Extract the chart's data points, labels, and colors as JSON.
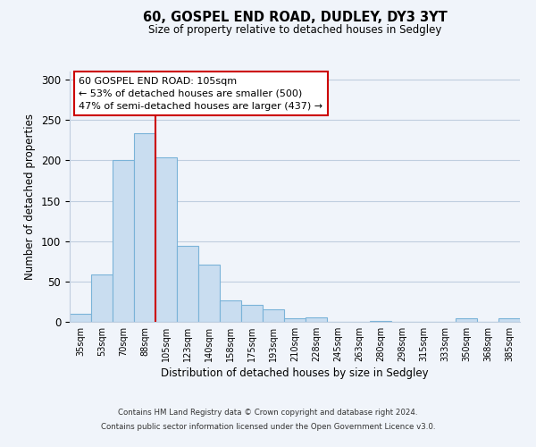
{
  "title": "60, GOSPEL END ROAD, DUDLEY, DY3 3YT",
  "subtitle": "Size of property relative to detached houses in Sedgley",
  "xlabel": "Distribution of detached houses by size in Sedgley",
  "ylabel": "Number of detached properties",
  "bar_labels": [
    "35sqm",
    "53sqm",
    "70sqm",
    "88sqm",
    "105sqm",
    "123sqm",
    "140sqm",
    "158sqm",
    "175sqm",
    "193sqm",
    "210sqm",
    "228sqm",
    "245sqm",
    "263sqm",
    "280sqm",
    "298sqm",
    "315sqm",
    "333sqm",
    "350sqm",
    "368sqm",
    "385sqm"
  ],
  "bar_values": [
    10,
    59,
    200,
    234,
    204,
    94,
    71,
    27,
    21,
    15,
    4,
    5,
    0,
    0,
    1,
    0,
    0,
    0,
    4,
    0,
    4
  ],
  "bar_color": "#c9ddf0",
  "bar_edge_color": "#7ab3d8",
  "ylim": [
    0,
    310
  ],
  "yticks": [
    0,
    50,
    100,
    150,
    200,
    250,
    300
  ],
  "vline_color": "#cc0000",
  "annotation_title": "60 GOSPEL END ROAD: 105sqm",
  "annotation_line1": "← 53% of detached houses are smaller (500)",
  "annotation_line2": "47% of semi-detached houses are larger (437) →",
  "annotation_box_color": "#cc0000",
  "footer_line1": "Contains HM Land Registry data © Crown copyright and database right 2024.",
  "footer_line2": "Contains public sector information licensed under the Open Government Licence v3.0.",
  "background_color": "#f0f4fa",
  "grid_color": "#c0cedf"
}
